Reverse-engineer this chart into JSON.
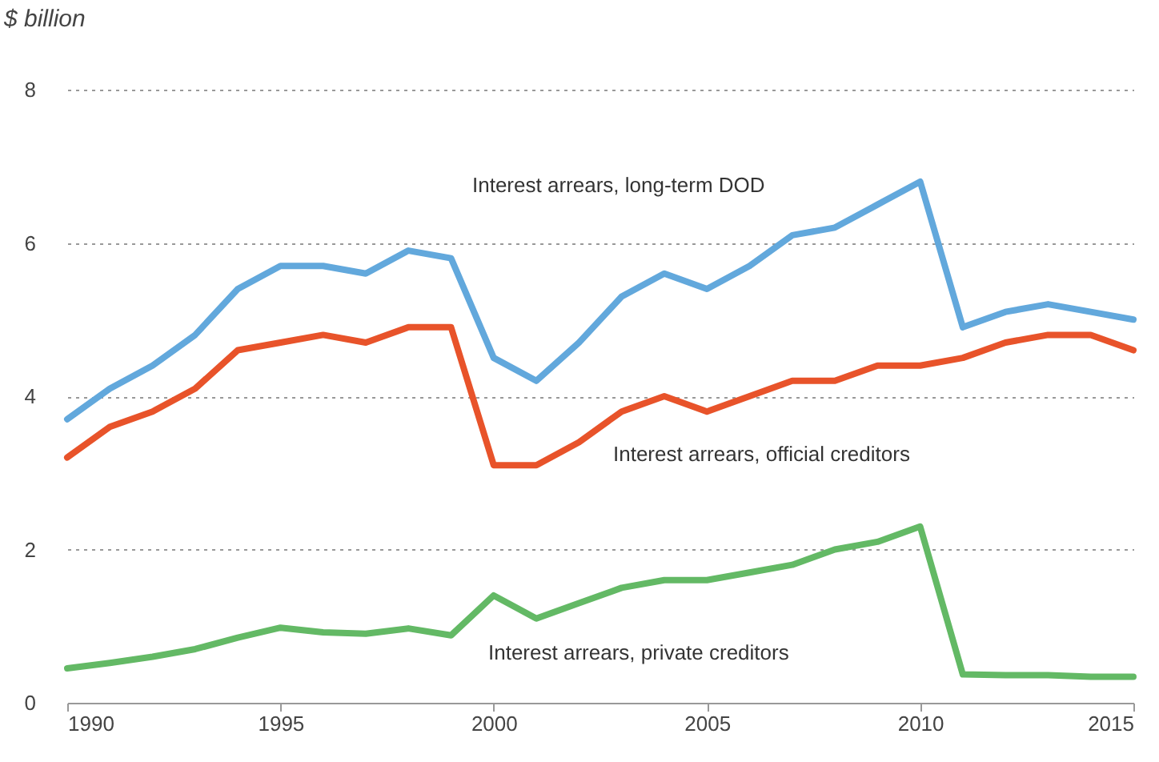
{
  "chart_data": {
    "type": "line",
    "ylabel": "$ billion",
    "x": [
      1990,
      1991,
      1992,
      1993,
      1994,
      1995,
      1996,
      1997,
      1998,
      1999,
      2000,
      2001,
      2002,
      2003,
      2004,
      2005,
      2006,
      2007,
      2008,
      2009,
      2010,
      2011,
      2012,
      2013,
      2014,
      2015
    ],
    "series": [
      {
        "name": "Interest arrears, long-term DOD",
        "color": "#62a8dc",
        "values": [
          3.7,
          4.1,
          4.4,
          4.8,
          5.4,
          5.7,
          5.7,
          5.6,
          5.9,
          5.8,
          4.5,
          4.2,
          4.7,
          5.3,
          5.6,
          5.4,
          5.7,
          6.1,
          6.2,
          6.5,
          6.8,
          4.9,
          5.1,
          5.2,
          5.1,
          5.0
        ]
      },
      {
        "name": "Interest arrears, official creditors",
        "color": "#e8532a",
        "values": [
          3.2,
          3.6,
          3.8,
          4.1,
          4.6,
          4.7,
          4.8,
          4.7,
          4.9,
          4.9,
          3.1,
          3.1,
          3.4,
          3.8,
          4.0,
          3.8,
          4.0,
          4.2,
          4.2,
          4.4,
          4.4,
          4.5,
          4.7,
          4.8,
          4.8,
          4.6
        ]
      },
      {
        "name": "Interest arrears, private creditors",
        "color": "#63b965",
        "values": [
          0.45,
          0.52,
          0.6,
          0.7,
          0.85,
          0.98,
          0.92,
          0.9,
          0.97,
          0.88,
          1.4,
          1.1,
          1.3,
          1.5,
          1.6,
          1.6,
          1.7,
          1.8,
          2.0,
          2.1,
          2.3,
          0.37,
          0.36,
          0.36,
          0.34,
          0.34
        ]
      }
    ],
    "xlim": [
      1990,
      2015
    ],
    "xticks": [
      1990,
      1995,
      2000,
      2005,
      2010,
      2015
    ],
    "ylim": [
      0,
      8
    ],
    "yticks": [
      0,
      2,
      4,
      6,
      8
    ],
    "grid": "y",
    "line_style": "solid"
  }
}
